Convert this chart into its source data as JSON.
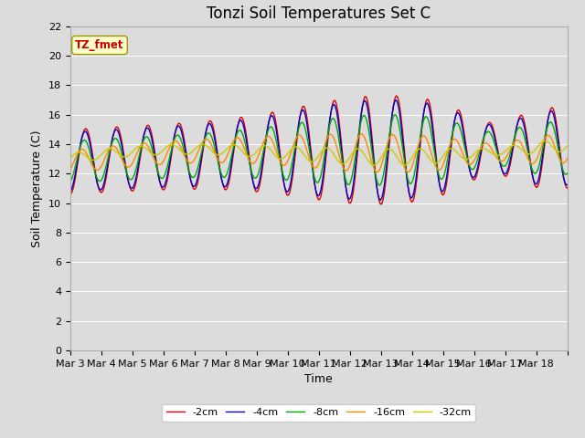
{
  "title": "Tonzi Soil Temperatures Set C",
  "xlabel": "Time",
  "ylabel": "Soil Temperature (C)",
  "ylim": [
    0,
    22
  ],
  "yticks": [
    0,
    2,
    4,
    6,
    8,
    10,
    12,
    14,
    16,
    18,
    20,
    22
  ],
  "legend_label": "TZ_fmet",
  "series_labels": [
    "-2cm",
    "-4cm",
    "-8cm",
    "-16cm",
    "-32cm"
  ],
  "series_colors": [
    "#dd0000",
    "#0000cc",
    "#00aa00",
    "#ff8800",
    "#cccc00"
  ],
  "background_color": "#dcdcdc",
  "plot_bg_color": "#dcdcdc",
  "grid_color": "#ffffff",
  "xtick_labels": [
    "Mar 3",
    "Mar 4",
    "Mar 5",
    "Mar 6",
    "Mar 7",
    "Mar 8",
    "Mar 9",
    "Mar 10",
    "Mar 11",
    "Mar 12",
    "Mar 13",
    "Mar 14",
    "Mar 15",
    "Mar 16",
    "Mar 17",
    "Mar 18"
  ],
  "title_fontsize": 12,
  "axis_fontsize": 9,
  "tick_fontsize": 8,
  "legend_box_color": "#ffffcc",
  "legend_text_color": "#cc0000"
}
